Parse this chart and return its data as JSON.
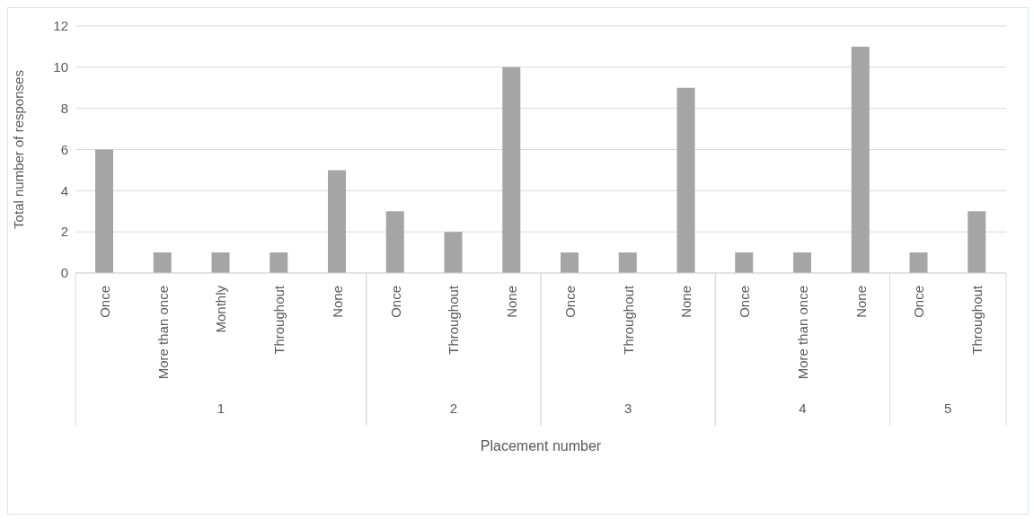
{
  "chart_data": {
    "type": "bar",
    "xlabel": "Placement number",
    "ylabel": "Total number of responses",
    "categories": [
      "Once",
      "More than once",
      "Monthly",
      "Throughout",
      "None",
      "Once",
      "Throughout",
      "None",
      "Once",
      "Throughout",
      "None",
      "Once",
      "More than once",
      "None",
      "Once",
      "Throughout"
    ],
    "series": [
      {
        "color": "#a5a5a5",
        "values": [
          6,
          1,
          1,
          1,
          5,
          null,
          null,
          null,
          null,
          null,
          null,
          null,
          null,
          null,
          null,
          null
        ]
      },
      {
        "color": "#a5a5a5",
        "values": [
          null,
          null,
          null,
          null,
          null,
          3,
          2,
          10,
          null,
          null,
          null,
          null,
          null,
          null,
          null,
          null
        ]
      },
      {
        "color": "#a5a5a5",
        "values": [
          null,
          null,
          null,
          null,
          null,
          null,
          null,
          null,
          1,
          1,
          9,
          null,
          null,
          null,
          null,
          null
        ]
      },
      {
        "color": "#a5a5a5",
        "values": [
          null,
          null,
          null,
          null,
          null,
          null,
          null,
          null,
          null,
          null,
          null,
          1,
          1,
          11,
          null,
          null
        ]
      },
      {
        "color": "#a5a5a5",
        "values": [
          null,
          null,
          null,
          null,
          null,
          null,
          null,
          null,
          null,
          null,
          null,
          null,
          null,
          null,
          1,
          3
        ]
      }
    ],
    "annotations": [
      "1",
      "2",
      "3",
      "4",
      "5"
    ],
    "ylim": [
      0,
      12
    ],
    "yticks": [
      0,
      2,
      4,
      6,
      8,
      10,
      12
    ],
    "grid": "y"
  }
}
